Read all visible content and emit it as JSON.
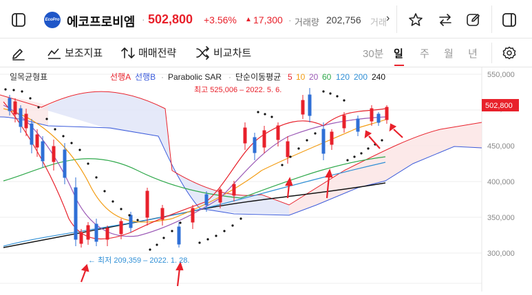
{
  "header": {
    "stock_logo_text": "EcoPro",
    "stock_name": "에코프로비엠",
    "separator": "·",
    "price": "502,800",
    "change_pct": "+3.56%",
    "change_arrow": "▲",
    "change_abs": "17,300",
    "separator2": "·",
    "volume_label": "거래량",
    "volume_value": "202,756",
    "truncated_text": "거래",
    "colors": {
      "up": "#e8212b",
      "logo": "#1e56c8"
    }
  },
  "toolbar": {
    "indicator_label": "보조지표",
    "strategy_label": "매매전략",
    "compare_label": "비교차트",
    "periods": [
      "30분",
      "일",
      "주",
      "월",
      "년"
    ],
    "active_period": "일"
  },
  "chart": {
    "indicator_title": "일목균형표",
    "legend": {
      "span_a": "선행A",
      "span_b": "선행B",
      "dot1": "·",
      "sar": "Parabolic SAR",
      "dot2": "·",
      "ma": "단순이동평균",
      "ma_periods": [
        "5",
        "10",
        "20",
        "60",
        "120",
        "200",
        "240"
      ]
    },
    "high_label": "최고 525,006 – 2022. 5. 6.",
    "low_label": "← 최저 209,359 – 2022. 1. 28.",
    "y_axis": [
      "550,000",
      "500,000",
      "450,000",
      "400,000",
      "350,000",
      "300,000"
    ],
    "current_price_tag": "502,800",
    "colors": {
      "candle_up": "#e8212b",
      "candle_down": "#2f6fd6",
      "ma5": "#e8212b",
      "ma10": "#f39c12",
      "ma20": "#9b59b6",
      "ma60": "#2ea84a",
      "ma120": "#2f8fd6",
      "ma240": "#111111",
      "span_a": "#e8212b",
      "span_b": "#3b5bdb",
      "sar": "#111111"
    }
  }
}
